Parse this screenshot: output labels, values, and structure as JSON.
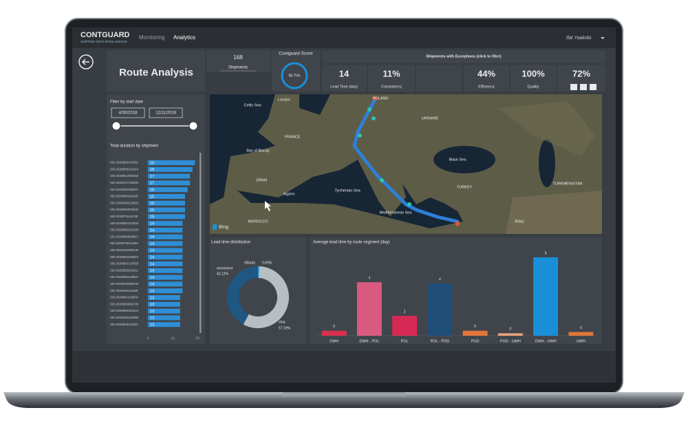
{
  "header": {
    "logo": "CONTGUARD",
    "tagline": "SHIPPING WITH INTELLIGENCE",
    "nav": [
      "Monitoring",
      "Analytics"
    ],
    "user": "Ifat Yaakobi"
  },
  "page_title": "Route Analysis",
  "shipments": {
    "value": "168",
    "label": "Shipments"
  },
  "score": {
    "title": "Contguard Score",
    "value": "98.75%"
  },
  "exceptions": {
    "title": "Shipments with Exceptions (click to filter)",
    "cards": [
      {
        "value": "14",
        "label": "Lead Time (day)"
      },
      {
        "value": "11%",
        "label": "Consistency"
      },
      {
        "value": "44%",
        "label": "Efficiency"
      },
      {
        "value": "100%",
        "label": "Quality"
      },
      {
        "value": "72%"
      }
    ]
  },
  "filter": {
    "title": "Filter by start date",
    "start": "4/30/2018",
    "end": "12/11/2018"
  },
  "map": {
    "labels": [
      "Celtic Sea",
      "London",
      "POLAND",
      "UKRAINE",
      "FRANCE",
      "Bay of Biscay",
      "SPAIN",
      "Algiers",
      "Tyrrhenian Sea",
      "Black Sea",
      "TURKEY",
      "Mediterranean Sea",
      "MOROCCO",
      "IRAQ",
      "TURKMENISTAN"
    ],
    "attribution": "Bing"
  },
  "chart_data": [
    {
      "type": "bar",
      "orientation": "horizontal",
      "title": "Total duration by shipment",
      "categories": [
        "SID-20180829153351",
        "SID-20180905110224",
        "SID-20180612094518",
        "SID-20180717162033",
        "SID-20180521083047",
        "SID-20180904141105",
        "SID-20180628120916",
        "SID-20180810075532",
        "SID-20180711134728",
        "SID-20180924101543",
        "SID-20180603152209",
        "SID-20180816093817",
        "SID-20180730114452",
        "SID-20181002085136",
        "SID-20180619163024",
        "SID-20180907124358",
        "SID-20180525101911",
        "SID-20180823140647",
        "SID-20180702090233",
        "SID-20181015111829",
        "SID-20180614135502",
        "SID-20180919082740",
        "SID-20180806154413",
        "SID-20181023102956",
        "SID-20180531133320"
      ],
      "values": [
        19,
        18,
        17,
        17,
        16,
        15,
        15,
        15,
        15,
        14,
        14,
        14,
        14,
        14,
        14,
        14,
        14,
        14,
        14,
        14,
        13,
        13,
        13,
        13,
        13
      ],
      "color": "#2e8fd6",
      "xlim": [
        0,
        20
      ],
      "xticks": [
        0,
        10,
        20
      ]
    },
    {
      "type": "pie",
      "hole": true,
      "title": "Lead time distribution",
      "categories": [
        "(Blank)",
        "stop",
        "movement"
      ],
      "values": [
        0.69,
        57.19,
        42.12
      ],
      "value_labels": [
        "0.69%",
        "57.19%",
        "42.12%"
      ],
      "colors": [
        "#2d9be0",
        "#b7bec4",
        "#1d5782"
      ]
    },
    {
      "type": "bar",
      "title": "Average lead time by route segment (day)",
      "categories": [
        "DWH",
        "DWH - POL",
        "POL",
        "POL - POD",
        "POD",
        "POD - UWH",
        "DWH - UWH",
        "UWH"
      ],
      "values": [
        0.4,
        4.3,
        1.6,
        4.2,
        0.4,
        0.2,
        6.3,
        0.3
      ],
      "value_labels": [
        "0",
        "4",
        "2",
        "4",
        "0",
        "0",
        "6",
        "0"
      ],
      "colors": [
        "#d9304e",
        "#d85a7f",
        "#d62a55",
        "#1f4e78",
        "#e0763a",
        "#e9a27a",
        "#1a8fd8",
        "#e0763a"
      ],
      "ylim": [
        0,
        6.8
      ]
    }
  ]
}
